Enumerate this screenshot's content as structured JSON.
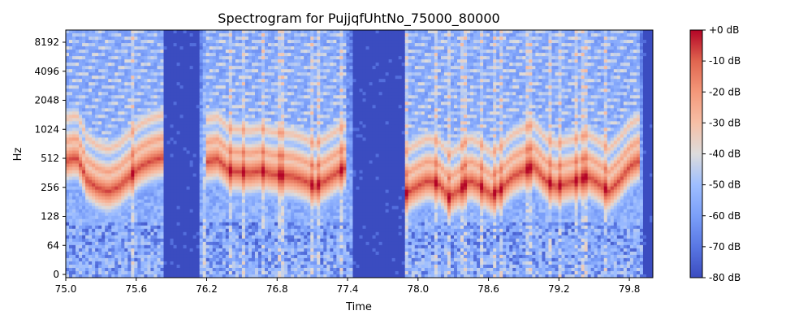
{
  "chart_data": {
    "type": "heatmap",
    "title": "Spectrogram for PujjqfUhtNo_75000_80000",
    "xlabel": "Time",
    "ylabel": "Hz",
    "xlim": [
      75.0,
      80.0
    ],
    "x_ticks": [
      "75.0",
      "75.6",
      "76.2",
      "76.8",
      "77.4",
      "78.0",
      "78.6",
      "79.2",
      "79.8"
    ],
    "x_tick_values": [
      75.0,
      75.6,
      76.2,
      76.8,
      77.4,
      78.0,
      78.6,
      79.2,
      79.8
    ],
    "y_scale": "symlog",
    "y_ticks": [
      "0",
      "64",
      "128",
      "256",
      "512",
      "1024",
      "2048",
      "4096",
      "8192"
    ],
    "y_tick_values": [
      0,
      64,
      128,
      256,
      512,
      1024,
      2048,
      4096,
      8192
    ],
    "colormap": "coolwarm",
    "colorbar": {
      "range": [
        -80,
        0
      ],
      "ticks": [
        "+0 dB",
        "-10 dB",
        "-20 dB",
        "-30 dB",
        "-40 dB",
        "-50 dB",
        "-60 dB",
        "-70 dB",
        "-80 dB"
      ],
      "tick_values": [
        0,
        -10,
        -20,
        -30,
        -40,
        -50,
        -60,
        -70,
        -80
      ]
    },
    "silent_intervals": [
      [
        75.82,
        76.13
      ],
      [
        77.45,
        77.88
      ],
      [
        79.93,
        80.0
      ]
    ],
    "voiced_segments": [
      {
        "start": 75.0,
        "end": 75.82
      },
      {
        "start": 76.13,
        "end": 77.45
      },
      {
        "start": 77.88,
        "end": 79.93
      }
    ],
    "formant_tracks": [
      {
        "start": 75.0,
        "end": 75.82,
        "hz": [
          480,
          520,
          300,
          250,
          230,
          260,
          330,
          420,
          480,
          520
        ]
      },
      {
        "start": 76.2,
        "end": 77.4,
        "hz": [
          470,
          500,
          380,
          370,
          360,
          380,
          350,
          340,
          330,
          300,
          260,
          300,
          360,
          420
        ]
      },
      {
        "start": 77.9,
        "end": 79.9,
        "hz": [
          220,
          260,
          300,
          280,
          200,
          240,
          300,
          260,
          210,
          250,
          330,
          380,
          420,
          300,
          260,
          280,
          300,
          330,
          280,
          230,
          300,
          420,
          500
        ]
      }
    ]
  }
}
